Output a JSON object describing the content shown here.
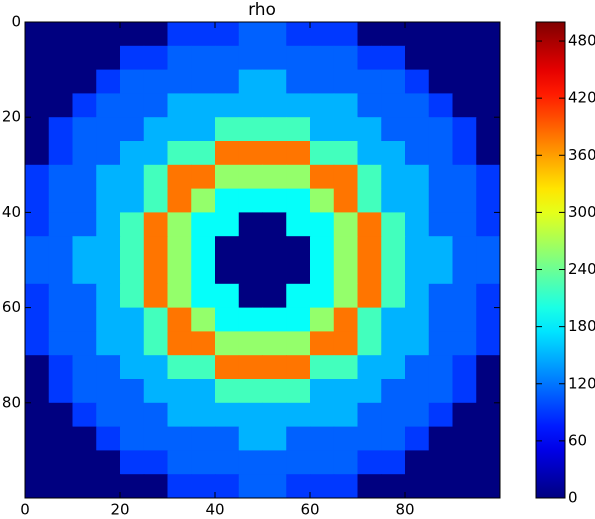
{
  "chart_data": {
    "type": "heatmap",
    "title": "rho",
    "colormap": "jet",
    "xlim": [
      0,
      100
    ],
    "ylim": [
      100,
      0
    ],
    "y_inverted": true,
    "xticks": [
      0,
      20,
      40,
      60,
      80
    ],
    "yticks": [
      0,
      20,
      40,
      60,
      80
    ],
    "clim": [
      0,
      500
    ],
    "cticks": [
      0,
      60,
      120,
      180,
      240,
      300,
      360,
      420,
      480
    ],
    "z": [
      [
        0,
        0,
        0,
        0,
        0,
        0,
        90,
        90,
        90,
        110,
        110,
        90,
        90,
        90,
        0,
        0,
        0,
        0,
        0,
        0
      ],
      [
        0,
        0,
        0,
        0,
        90,
        90,
        110,
        110,
        110,
        110,
        110,
        110,
        110,
        110,
        90,
        90,
        0,
        0,
        0,
        0
      ],
      [
        0,
        0,
        0,
        90,
        110,
        110,
        110,
        110,
        110,
        150,
        150,
        110,
        110,
        110,
        110,
        110,
        90,
        0,
        0,
        0
      ],
      [
        0,
        0,
        90,
        110,
        110,
        110,
        150,
        150,
        150,
        150,
        150,
        150,
        150,
        150,
        110,
        110,
        110,
        90,
        0,
        0
      ],
      [
        0,
        90,
        110,
        110,
        110,
        150,
        150,
        150,
        220,
        220,
        220,
        220,
        150,
        150,
        150,
        110,
        110,
        110,
        90,
        0
      ],
      [
        0,
        90,
        110,
        110,
        150,
        150,
        220,
        220,
        380,
        380,
        380,
        380,
        220,
        220,
        150,
        150,
        110,
        110,
        90,
        0
      ],
      [
        90,
        110,
        110,
        150,
        150,
        220,
        380,
        380,
        260,
        260,
        260,
        260,
        380,
        380,
        220,
        150,
        150,
        110,
        110,
        90
      ],
      [
        90,
        110,
        110,
        150,
        150,
        220,
        380,
        260,
        190,
        190,
        190,
        190,
        260,
        380,
        220,
        150,
        150,
        110,
        110,
        90
      ],
      [
        90,
        110,
        110,
        150,
        220,
        380,
        260,
        190,
        190,
        0,
        0,
        190,
        190,
        260,
        380,
        220,
        150,
        110,
        110,
        90
      ],
      [
        110,
        110,
        150,
        150,
        220,
        380,
        260,
        190,
        0,
        0,
        0,
        0,
        190,
        260,
        380,
        220,
        150,
        150,
        110,
        110
      ],
      [
        110,
        110,
        150,
        150,
        220,
        380,
        260,
        190,
        0,
        0,
        0,
        0,
        190,
        260,
        380,
        220,
        150,
        150,
        110,
        110
      ],
      [
        90,
        110,
        110,
        150,
        220,
        380,
        260,
        190,
        190,
        0,
        0,
        190,
        190,
        260,
        380,
        220,
        150,
        110,
        110,
        90
      ],
      [
        90,
        110,
        110,
        150,
        150,
        220,
        380,
        260,
        190,
        190,
        190,
        190,
        260,
        380,
        220,
        150,
        150,
        110,
        110,
        90
      ],
      [
        90,
        110,
        110,
        150,
        150,
        220,
        380,
        380,
        260,
        260,
        260,
        260,
        380,
        380,
        220,
        150,
        150,
        110,
        110,
        90
      ],
      [
        0,
        90,
        110,
        110,
        150,
        150,
        220,
        220,
        380,
        380,
        380,
        380,
        220,
        220,
        150,
        150,
        110,
        110,
        90,
        0
      ],
      [
        0,
        90,
        110,
        110,
        110,
        150,
        150,
        150,
        220,
        220,
        220,
        220,
        150,
        150,
        150,
        110,
        110,
        110,
        90,
        0
      ],
      [
        0,
        0,
        90,
        110,
        110,
        110,
        150,
        150,
        150,
        150,
        150,
        150,
        150,
        150,
        110,
        110,
        110,
        90,
        0,
        0
      ],
      [
        0,
        0,
        0,
        90,
        110,
        110,
        110,
        110,
        110,
        150,
        150,
        110,
        110,
        110,
        110,
        110,
        90,
        0,
        0,
        0
      ],
      [
        0,
        0,
        0,
        0,
        90,
        90,
        110,
        110,
        110,
        110,
        110,
        110,
        110,
        110,
        90,
        90,
        0,
        0,
        0,
        0
      ],
      [
        0,
        0,
        0,
        0,
        0,
        0,
        90,
        90,
        90,
        110,
        110,
        90,
        90,
        90,
        0,
        0,
        0,
        0,
        0,
        0
      ]
    ]
  }
}
